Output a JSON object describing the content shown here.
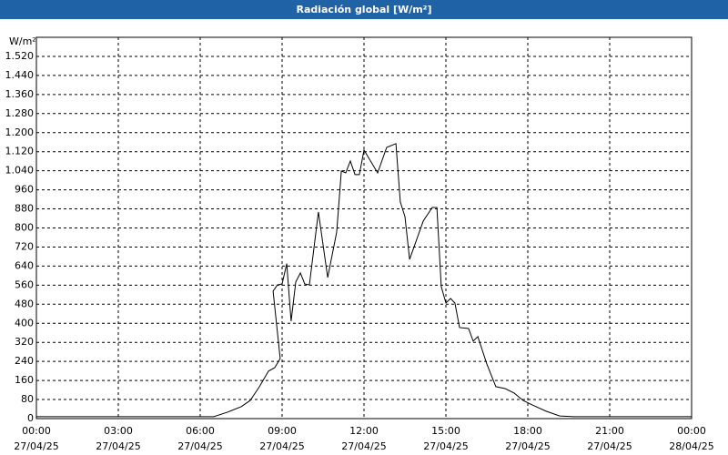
{
  "chart_data": {
    "type": "line",
    "title": "Radiación global [W/m²]",
    "y_label": "W/m²",
    "x": [
      0,
      6.5,
      7.0,
      7.5,
      7.83,
      8.17,
      8.5,
      8.73,
      8.93,
      8.67,
      8.83,
      9.0,
      9.17,
      9.33,
      9.5,
      9.67,
      9.83,
      10.0,
      10.33,
      10.67,
      11.0,
      11.17,
      11.33,
      11.5,
      11.67,
      11.83,
      12.0,
      12.5,
      12.83,
      13.17,
      13.33,
      13.5,
      13.67,
      14.17,
      14.5,
      14.67,
      14.83,
      15.0,
      15.17,
      15.33,
      15.5,
      15.83,
      16.0,
      16.17,
      16.5,
      16.83,
      17.17,
      17.5,
      17.83,
      18.17,
      18.67,
      19.17,
      19.67,
      24
    ],
    "series": [
      {
        "name": "Radiación global",
        "color": "#000000",
        "values": [
          8,
          8,
          27,
          50,
          76,
          134,
          199,
          214,
          252,
          535,
          561,
          565,
          650,
          409,
          573,
          611,
          565,
          561,
          867,
          592,
          783,
          1039,
          1031,
          1081,
          1024,
          1024,
          1127,
          1031,
          1138,
          1154,
          909,
          848,
          668,
          829,
          886,
          886,
          554,
          485,
          504,
          485,
          382,
          378,
          325,
          344,
          229,
          134,
          126,
          107,
          76,
          57,
          31,
          11,
          8,
          8
        ]
      }
    ],
    "xlim": [
      0,
      24
    ],
    "xticks": [
      {
        "value": 0,
        "label": "00:00",
        "date": "27/04/25"
      },
      {
        "value": 3,
        "label": "03:00",
        "date": "27/04/25"
      },
      {
        "value": 6,
        "label": "06:00",
        "date": "27/04/25"
      },
      {
        "value": 9,
        "label": "09:00",
        "date": "27/04/25"
      },
      {
        "value": 12,
        "label": "12:00",
        "date": "27/04/25"
      },
      {
        "value": 15,
        "label": "15:00",
        "date": "27/04/25"
      },
      {
        "value": 18,
        "label": "18:00",
        "date": "27/04/25"
      },
      {
        "value": 21,
        "label": "21:00",
        "date": "27/04/25"
      },
      {
        "value": 24,
        "label": "00:00",
        "date": "28/04/25"
      }
    ],
    "ylim": [
      0,
      1600
    ],
    "yticks": [
      0,
      80,
      160,
      240,
      320,
      400,
      480,
      560,
      640,
      720,
      800,
      880,
      960,
      {
        "value": 1040,
        "label": "1.040"
      },
      {
        "value": 1120,
        "label": "1.120"
      },
      {
        "value": 1200,
        "label": "1.200"
      },
      {
        "value": 1280,
        "label": "1.280"
      },
      {
        "value": 1360,
        "label": "1.360"
      },
      {
        "value": 1440,
        "label": "1.440"
      },
      {
        "value": 1520,
        "label": "1.520"
      }
    ],
    "grid": true
  }
}
